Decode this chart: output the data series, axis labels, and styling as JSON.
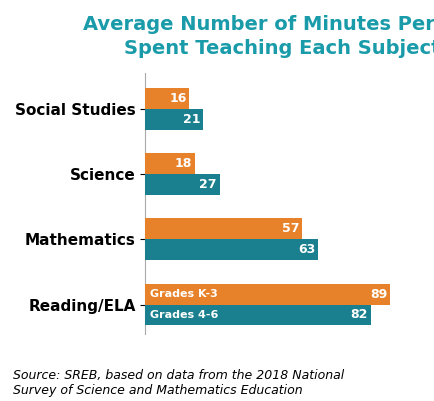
{
  "title": "Average Number of Minutes Per Day\nSpent Teaching Each Subject",
  "title_color": "#1a9baa",
  "title_fontsize": 14,
  "categories": [
    "Social Studies",
    "Science",
    "Mathematics",
    "Reading/ELA"
  ],
  "grades_k3": [
    16,
    18,
    57,
    89
  ],
  "grades_46": [
    21,
    27,
    63,
    82
  ],
  "color_k3": "#e8822a",
  "color_46": "#1a7f8e",
  "bar_height": 0.32,
  "xlim": [
    0,
    100
  ],
  "source_text": "Source: SREB, based on data from the 2018 National\nSurvey of Science and Mathematics Education",
  "source_fontsize": 9,
  "label_k3": "Grades K-3",
  "label_46": "Grades 4-6",
  "bg_color": "#ffffff"
}
